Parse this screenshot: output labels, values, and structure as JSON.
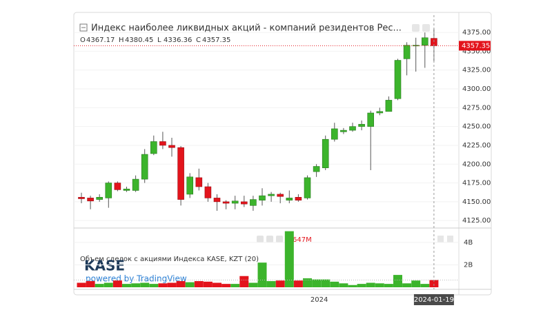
{
  "chart_data": {
    "type": "candlestick",
    "title": "Индекс наиболее ликвидных акций - компаний резидентов Рес...",
    "ohlc_legend": [
      {
        "label": "O",
        "value": 4367.17
      },
      {
        "label": "H",
        "value": 4380.45
      },
      {
        "label": "L",
        "value": 4336.36
      },
      {
        "label": "C",
        "value": 4357.35
      }
    ],
    "last_price": 4357.35,
    "up_color": "#3cb42c",
    "down_color": "#e3141c",
    "categories": [
      null,
      null,
      null,
      null,
      null,
      null,
      null,
      null,
      null,
      null,
      null,
      null,
      null,
      null,
      null,
      null,
      null,
      null,
      null,
      null,
      null,
      null,
      null,
      null,
      null,
      null,
      "2024",
      null,
      null,
      null,
      null,
      null,
      null,
      null,
      null,
      null,
      null,
      null,
      null,
      "2024-01-19"
    ],
    "open": [
      4156,
      4155,
      4153,
      4155,
      4175,
      4165,
      4165,
      4180,
      4214,
      4230,
      4225,
      4222,
      4160,
      4182,
      4170,
      4155,
      4150,
      4148,
      4150,
      4145,
      4152,
      4158,
      4160,
      4152,
      4156,
      4155,
      4190,
      4195,
      4233,
      4243,
      4245,
      4250,
      4250,
      4268,
      4270,
      4287,
      4340,
      4357,
      4358,
      4367.17
    ],
    "high": [
      4162,
      4158,
      4160,
      4177,
      4177,
      4170,
      4185,
      4220,
      4238,
      4243,
      4235,
      4224,
      4188,
      4194,
      4175,
      4160,
      4152,
      4158,
      4158,
      4158,
      4168,
      4163,
      4162,
      4165,
      4160,
      4185,
      4200,
      4238,
      4255,
      4248,
      4255,
      4258,
      4271,
      4275,
      4290,
      4340,
      4362,
      4368,
      4375,
      4380.45
    ],
    "low": [
      4148,
      4140,
      4150,
      4142,
      4164,
      4163,
      4163,
      4175,
      4212,
      4220,
      4210,
      4145,
      4155,
      4165,
      4150,
      4138,
      4140,
      4140,
      4143,
      4138,
      4145,
      4150,
      4148,
      4148,
      4150,
      4153,
      4183,
      4192,
      4230,
      4240,
      4243,
      4245,
      4192,
      4265,
      4270,
      4285,
      4318,
      4323,
      4328,
      4336.36
    ],
    "close": [
      4154,
      4151,
      4156,
      4175,
      4166,
      4167,
      4180,
      4213,
      4230,
      4225,
      4222,
      4153,
      4183,
      4170,
      4155,
      4150,
      4148,
      4151,
      4147,
      4153,
      4158,
      4160,
      4157,
      4155,
      4152,
      4182,
      4197,
      4233,
      4247,
      4245,
      4250,
      4253,
      4268,
      4270,
      4285,
      4338,
      4358,
      4358,
      4368,
      4357.35
    ],
    "ylim": [
      4116,
      4398
    ],
    "yticks": [
      {
        "value": 4125,
        "label": "4125.00"
      },
      {
        "value": 4150,
        "label": "4150.00"
      },
      {
        "value": 4175,
        "label": "4175.00"
      },
      {
        "value": 4200,
        "label": "4200.00"
      },
      {
        "value": 4225,
        "label": "4225.00"
      },
      {
        "value": 4250,
        "label": "4250.00"
      },
      {
        "value": 4275,
        "label": "4275.00"
      },
      {
        "value": 4300,
        "label": "4300.00"
      },
      {
        "value": 4325,
        "label": "4325.00"
      },
      {
        "value": 4350,
        "label": "4350.00"
      },
      {
        "value": 4375,
        "label": "4375.00"
      }
    ],
    "volume": {
      "title": "Объем сделок с акциями Индекса KASE, KZT (20)",
      "last_label": "647M",
      "values": [
        400000000,
        550000000,
        300000000,
        400000000,
        600000000,
        300000000,
        350000000,
        400000000,
        300000000,
        350000000,
        400000000,
        550000000,
        450000000,
        550000000,
        500000000,
        400000000,
        300000000,
        300000000,
        1000000000,
        400000000,
        2200000000,
        550000000,
        600000000,
        5000000000,
        600000000,
        800000000,
        700000000,
        700000000,
        500000000,
        350000000,
        200000000,
        300000000,
        400000000,
        350000000,
        300000000,
        1100000000,
        350000000,
        600000000,
        300000000,
        647000000
      ],
      "ylim": [
        0,
        5100000000
      ],
      "yticks": [
        {
          "value": 2000000000,
          "label": "2B"
        },
        {
          "value": 4000000000,
          "label": "4B"
        }
      ]
    },
    "logo": {
      "name": "KASE",
      "powered": "powered by TradingView"
    }
  }
}
